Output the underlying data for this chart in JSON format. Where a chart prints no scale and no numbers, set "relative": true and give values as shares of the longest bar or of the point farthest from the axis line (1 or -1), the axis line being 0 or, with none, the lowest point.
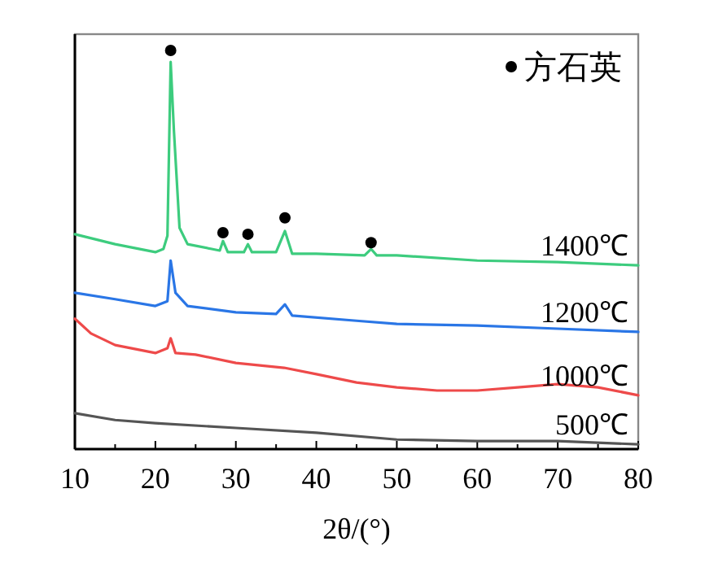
{
  "chart_data": {
    "type": "line",
    "xlabel": "2θ/(°)",
    "relative": true,
    "legend": "top right",
    "xlim": [
      10,
      80
    ],
    "xticks": [
      10,
      {
        "value": 15,
        "label": null
      },
      20,
      {
        "value": 25,
        "label": null
      },
      30,
      {
        "value": 35,
        "label": null
      },
      40,
      {
        "value": 45,
        "label": null
      },
      50,
      {
        "value": 55,
        "label": null
      },
      60,
      {
        "value": 65,
        "label": null
      },
      70,
      {
        "value": 75,
        "label": null
      },
      80
    ],
    "series": [
      {
        "name": "1400℃",
        "color": "#3dcc7e",
        "x": [
          10,
          15,
          20,
          21,
          21.5,
          21.9,
          22.3,
          23,
          24,
          27,
          28,
          28.4,
          29,
          31,
          31.5,
          32,
          35,
          36.1,
          37,
          40,
          46,
          46.8,
          47.5,
          50,
          60,
          70,
          80
        ],
        "values": [
          0.539,
          0.514,
          0.494,
          0.502,
          0.535,
          0.971,
          0.8,
          0.555,
          0.514,
          0.502,
          0.498,
          0.522,
          0.494,
          0.494,
          0.514,
          0.494,
          0.494,
          0.547,
          0.49,
          0.49,
          0.486,
          0.502,
          0.486,
          0.486,
          0.473,
          0.469,
          0.461
        ]
      },
      {
        "name": "1200℃",
        "color": "#2a76e6",
        "x": [
          10,
          15,
          20,
          21.5,
          21.9,
          22.5,
          24,
          30,
          35,
          36.1,
          37,
          45,
          50,
          60,
          70,
          80
        ],
        "values": [
          0.392,
          0.376,
          0.359,
          0.371,
          0.473,
          0.392,
          0.359,
          0.343,
          0.339,
          0.363,
          0.335,
          0.322,
          0.314,
          0.31,
          0.302,
          0.294
        ]
      },
      {
        "name": "1000℃",
        "color": "#ee4a4a",
        "x": [
          10,
          12,
          15,
          20,
          21.5,
          21.9,
          22.5,
          25,
          30,
          36,
          40,
          45,
          50,
          55,
          60,
          65,
          70,
          75,
          80
        ],
        "values": [
          0.327,
          0.29,
          0.261,
          0.241,
          0.253,
          0.278,
          0.241,
          0.237,
          0.216,
          0.204,
          0.188,
          0.167,
          0.155,
          0.147,
          0.147,
          0.155,
          0.163,
          0.155,
          0.135
        ]
      },
      {
        "name": "500℃",
        "color": "#555555",
        "x": [
          10,
          15,
          20,
          30,
          40,
          50,
          60,
          70,
          80
        ],
        "values": [
          0.09,
          0.073,
          0.065,
          0.053,
          0.041,
          0.024,
          0.02,
          0.02,
          0.012
        ]
      },
      {
        "name": "方石英",
        "type": "scatter",
        "marker": "circle",
        "color": "#000000",
        "x": [
          21.9,
          28.4,
          31.5,
          36.1,
          46.8
        ],
        "values": [
          1,
          0.543,
          0.539,
          0.58,
          0.518
        ]
      }
    ]
  }
}
